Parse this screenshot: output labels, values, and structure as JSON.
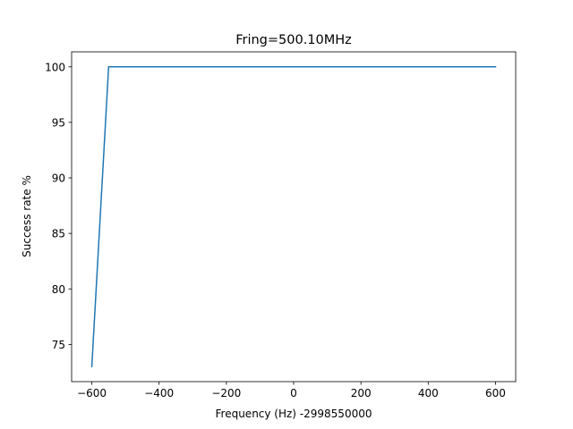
{
  "chart_data": {
    "type": "line",
    "title": "Fring=500.10MHz",
    "xlabel": "Frequency (Hz) -2998550000",
    "ylabel": "Success rate %",
    "xlim": [
      -660,
      660
    ],
    "ylim": [
      71.65,
      101.35
    ],
    "xticks": [
      -600,
      -400,
      -200,
      0,
      200,
      400,
      600
    ],
    "xtick_labels": [
      "−600",
      "−400",
      "−200",
      "0",
      "200",
      "400",
      "600"
    ],
    "yticks": [
      75,
      80,
      85,
      90,
      95,
      100
    ],
    "ytick_labels": [
      "75",
      "80",
      "85",
      "90",
      "95",
      "100"
    ],
    "grid": false,
    "series": [
      {
        "color": "#1f77b4",
        "x": [
          -600,
          -550,
          600
        ],
        "y": [
          73,
          100,
          100
        ]
      }
    ]
  }
}
